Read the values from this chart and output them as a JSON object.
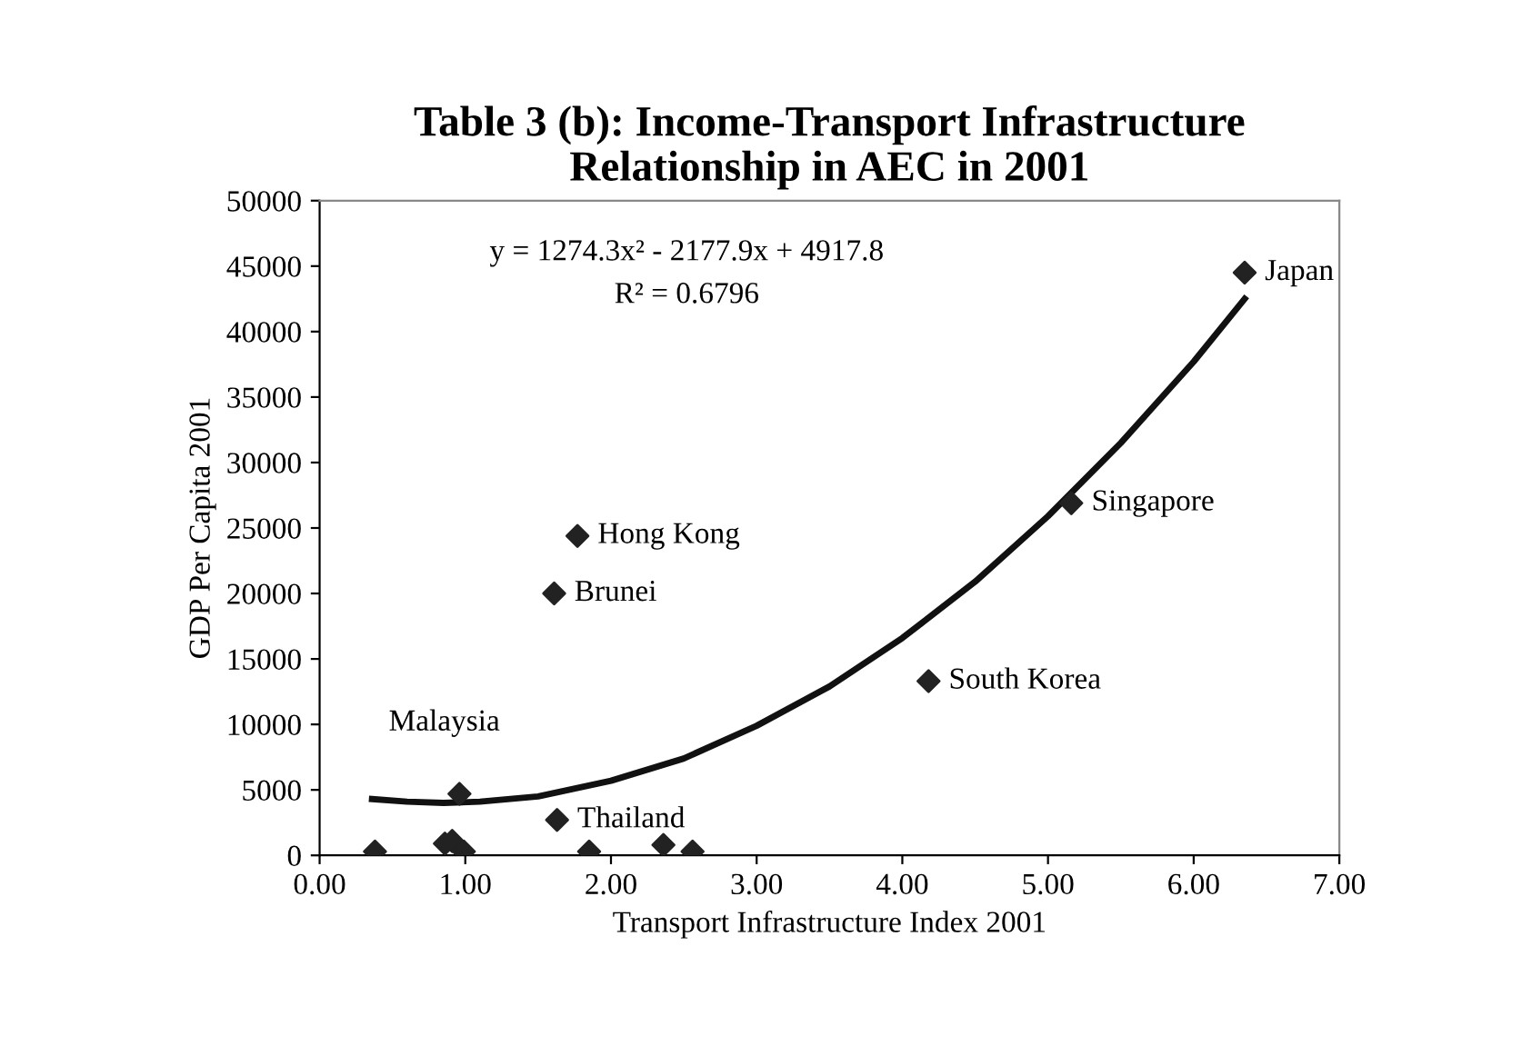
{
  "chart_data": {
    "type": "scatter",
    "title": "Table 3 (b): Income-Transport Infrastructure\nRelationship in AEC in 2001",
    "xlabel": "Transport Infrastructure Index 2001",
    "ylabel": "GDP Per Capita 2001",
    "xlim": [
      0,
      7
    ],
    "xticks": [
      {
        "value": 0,
        "label": "0.00"
      },
      {
        "value": 1,
        "label": "1.00"
      },
      {
        "value": 2,
        "label": "2.00"
      },
      {
        "value": 3,
        "label": "3.00"
      },
      {
        "value": 4,
        "label": "4.00"
      },
      {
        "value": 5,
        "label": "5.00"
      },
      {
        "value": 6,
        "label": "6.00"
      },
      {
        "value": 7,
        "label": "7.00"
      }
    ],
    "ylim": [
      0,
      50000
    ],
    "yticks": [
      0,
      5000,
      10000,
      15000,
      20000,
      25000,
      30000,
      35000,
      40000,
      45000,
      50000
    ],
    "grid": false,
    "legend": false,
    "series": [
      {
        "marker": "diamond",
        "color": "#222222",
        "x": [
          0.38,
          0.86,
          0.91,
          0.99,
          0.96,
          1.63,
          1.85,
          2.36,
          2.56,
          4.18,
          1.77,
          1.61,
          5.16,
          6.35
        ],
        "values": [
          300,
          900,
          1100,
          300,
          4700,
          2700,
          300,
          800,
          300,
          13300,
          24400,
          20000,
          26900,
          44500
        ]
      },
      {
        "type": "line",
        "color": "#111111",
        "line_style": "solid",
        "x": [
          0.36,
          0.6,
          0.85,
          1.1,
          1.5,
          2,
          2.5,
          3,
          3.5,
          4,
          4.5,
          5,
          5.5,
          6,
          6.35
        ],
        "values": [
          4300,
          4100,
          4000,
          4100,
          4500,
          5700,
          7400,
          9900,
          12900,
          16600,
          20900,
          25900,
          31500,
          37700,
          42500
        ]
      }
    ],
    "annotations": [
      "y = 1274.3x² - 2177.9x + 4917.8",
      "R² = 0.6796",
      {
        "text": "Japan",
        "x": 6.35,
        "y": 44500
      },
      {
        "text": "Singapore",
        "x": 5.16,
        "y": 26900
      },
      {
        "text": "South Korea",
        "x": 4.18,
        "y": 13300
      },
      {
        "text": "Hong Kong",
        "x": 1.77,
        "y": 24400
      },
      {
        "text": "Brunei",
        "x": 1.61,
        "y": 20000
      },
      {
        "text": "Malaysia",
        "x": 0.96,
        "y": 4700
      },
      {
        "text": "Thailand",
        "x": 1.63,
        "y": 2700
      }
    ]
  }
}
